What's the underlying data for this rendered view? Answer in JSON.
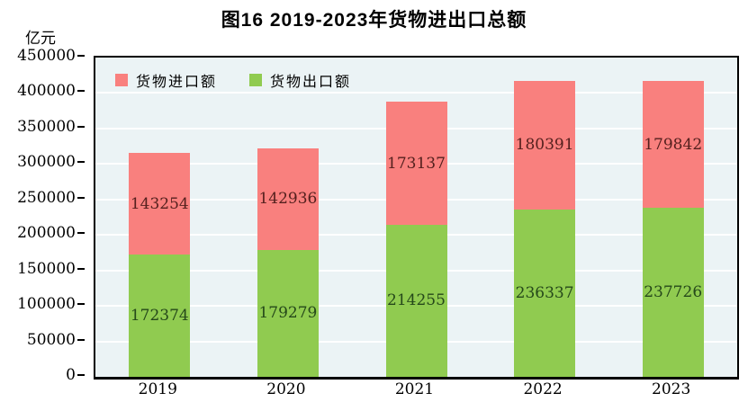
{
  "chart_data": {
    "type": "bar",
    "stacked": true,
    "title": "图16  2019-2023年货物进出口总额",
    "ylabel": "亿元",
    "xlabel": "",
    "categories": [
      "2019",
      "2020",
      "2021",
      "2022",
      "2023"
    ],
    "series": [
      {
        "name": "货物出口额",
        "color": "#90cb50",
        "label_color": "#25481a",
        "values": [
          172374,
          179279,
          214255,
          236337,
          237726
        ]
      },
      {
        "name": "货物进口额",
        "color": "#f9807e",
        "label_color": "#54201e",
        "values": [
          143254,
          142936,
          173137,
          180391,
          179842
        ]
      }
    ],
    "legend": [
      {
        "label": "货物进口额",
        "color": "#f9807e"
      },
      {
        "label": "货物出口额",
        "color": "#90cb50"
      }
    ],
    "ylim": [
      0,
      450000
    ],
    "ytick_step": 50000,
    "ytick_labels": [
      "0",
      "50000",
      "100000",
      "150000",
      "200000",
      "250000",
      "300000",
      "350000",
      "400000",
      "450000"
    ],
    "grid": true,
    "gridline_color": "#ffffff",
    "plot_bg": "#ebf3f5",
    "legend_position": "top-left"
  }
}
